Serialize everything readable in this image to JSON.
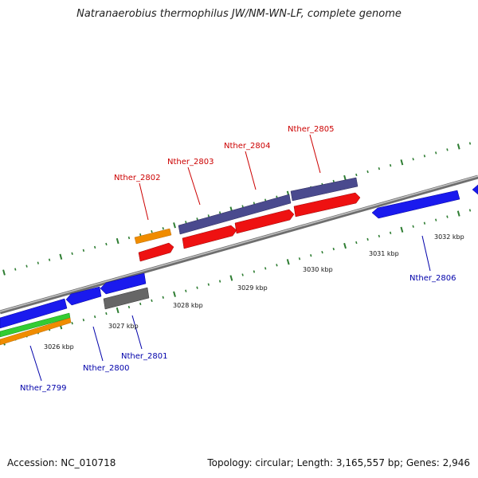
{
  "title": "Natranaerobius thermophilus JW/NM-WN-LF, complete genome",
  "footer": {
    "accession": "Accession: NC_010718",
    "stats": "Topology: circular; Length: 3,165,557 bp; Genes: 2,946"
  },
  "colors": {
    "forward_label": "#cc0000",
    "reverse_label": "#0000aa",
    "backbone": "#888888",
    "tick": "#2e7d32"
  },
  "scale_labels": [
    "3026 kbp",
    "3027 kbp",
    "3028 kbp",
    "3029 kbp",
    "3030 kbp",
    "3031 kbp",
    "3032 kbp"
  ],
  "gene_labels": [
    {
      "text": "Nther_2802",
      "strand": "forward"
    },
    {
      "text": "Nther_2803",
      "strand": "forward"
    },
    {
      "text": "Nther_2804",
      "strand": "forward"
    },
    {
      "text": "Nther_2805",
      "strand": "forward"
    },
    {
      "text": "Nther_2806",
      "strand": "reverse"
    },
    {
      "text": "Nther_2801",
      "strand": "reverse"
    },
    {
      "text": "Nther_2800",
      "strand": "reverse"
    },
    {
      "text": "Nther_2799",
      "strand": "reverse"
    }
  ]
}
